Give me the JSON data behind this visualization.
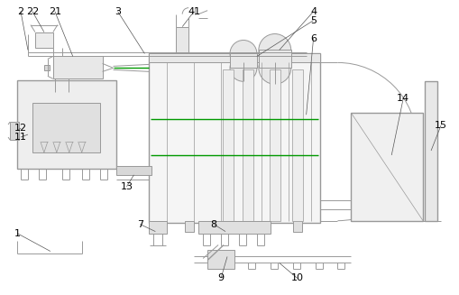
{
  "bg_color": "#ffffff",
  "line_color": "#999999",
  "dark_line": "#666666",
  "green_color": "#009900",
  "label_color": "#000000",
  "label_fontsize": 8,
  "dpi": 100,
  "figsize": [
    5.1,
    3.27
  ]
}
